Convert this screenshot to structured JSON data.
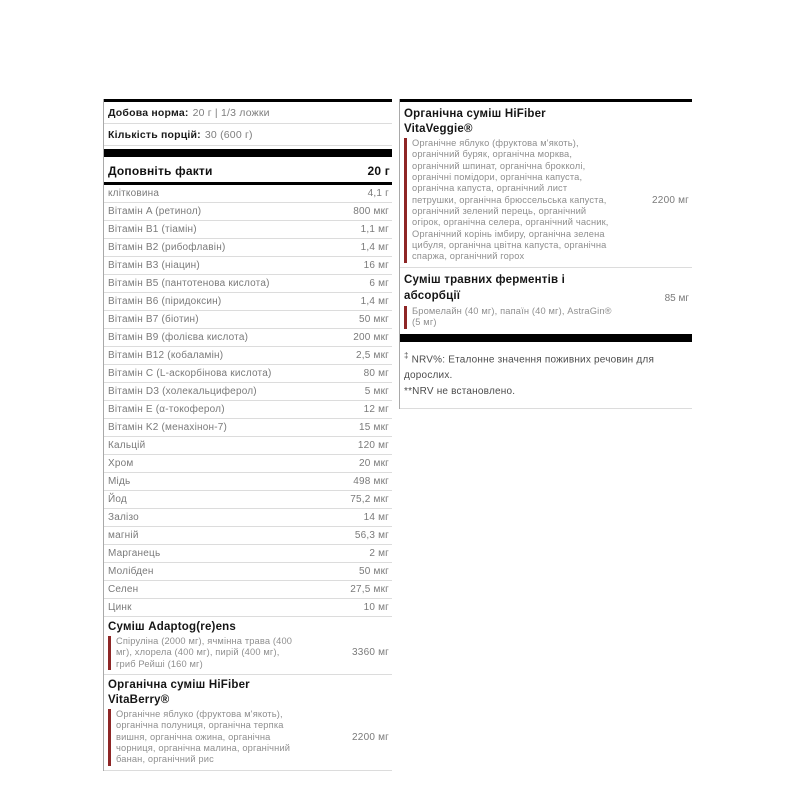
{
  "colors": {
    "accent_red": "#8e2626",
    "bar_black": "#000000"
  },
  "left_panel": {
    "daily_dose_label": "Добова норма:",
    "daily_dose_value": "20 г | 1/3 ложки",
    "servings_label": "Кількість порцій:",
    "servings_value": "30 (600 г)",
    "facts_header": "Доповніть факти",
    "facts_header_amount": "20 г",
    "rows": [
      {
        "label": "клітковина",
        "value": "4,1 г"
      },
      {
        "label": "Вітамін A (ретинол)",
        "value": "800 мкг"
      },
      {
        "label": "Вітамін B1 (тіамін)",
        "value": "1,1 мг"
      },
      {
        "label": "Вітамін B2 (рибофлавін)",
        "value": "1,4 мг"
      },
      {
        "label": "Вітамін B3 (ніацин)",
        "value": "16 мг"
      },
      {
        "label": "Вітамін B5 (пантотенова кислота)",
        "value": "6 мг"
      },
      {
        "label": "Вітамін B6 (піридоксин)",
        "value": "1,4 мг"
      },
      {
        "label": "Вітамін B7 (біотин)",
        "value": "50 мкг"
      },
      {
        "label": "Вітамін B9 (фолієва кислота)",
        "value": "200 мкг"
      },
      {
        "label": "Вітамін B12 (кобаламін)",
        "value": "2,5 мкг"
      },
      {
        "label": "Вітамін C (L-аскорбінова кислота)",
        "value": "80 мг"
      },
      {
        "label": "Вітамін D3 (холекальциферол)",
        "value": "5 мкг"
      },
      {
        "label": "Вітамін E (α-токоферол)",
        "value": "12 мг"
      },
      {
        "label": "Вітамін K2 (менахінон-7)",
        "value": "15 мкг"
      },
      {
        "label": "Кальцій",
        "value": "120 мг"
      },
      {
        "label": "Хром",
        "value": "20 мкг"
      },
      {
        "label": "Мідь",
        "value": "498 мкг"
      },
      {
        "label": "Йод",
        "value": "75,2 мкг"
      },
      {
        "label": "Залізо",
        "value": "14 мг"
      },
      {
        "label": "магній",
        "value": "56,3 мг"
      },
      {
        "label": "Марганець",
        "value": "2 мг"
      },
      {
        "label": "Молібден",
        "value": "50 мкг"
      },
      {
        "label": "Селен",
        "value": "27,5 мкг"
      },
      {
        "label": "Цинк",
        "value": "10 мг"
      }
    ],
    "adaptogens_title": "Суміш Adaptog(re)ens",
    "adaptogens_ingredients": "Спіруліна (2000 мг), ячмінна трава (400 мг), хлорела (400 мг), пирій (400 мг), гриб Рейші (160 мг)",
    "adaptogens_value": "3360 мг",
    "hifiber_title": "Органічна суміш HiFiber",
    "vitaberry_title": "VitaBerry®",
    "vitaberry_ingredients": "Органічне яблуко (фруктова м'якоть), органічна полуниця, органічна терпка вишня, органічна ожина, органічна чорниця, органічна малина, органічний банан, органічний рис",
    "vitaberry_value": "2200 мг"
  },
  "right_panel": {
    "hifiber_title": "Органічна суміш HiFiber",
    "vitaveggie_title": "VitaVeggie®",
    "vitaveggie_ingredients": "Органічне яблуко (фруктова м'якоть), органічний буряк, органічна морква, органічний шпинат, органічна брокколі, органічні помідори, органічна капуста, органічна капуста, органічний лист петрушки, органічна брюссельська капуста, органічний зелений перець, органічний огірок, органічна селера, органічний часник, Органічний корінь імбиру, органічна зелена цибуля, органічна цвітна капуста, органічна спаржа, органічний горох",
    "vitaveggie_value": "2200 мг",
    "enzymes_title": "Суміш травних ферментів і абсорбції",
    "enzymes_ingredients": "Бромелайн (40 мг), папаїн (40 мг), AstraGin® (5 мг)",
    "enzymes_value": "85 мг",
    "footnote_marker": "‡",
    "footnote1": "NRV%: Еталонне значення поживних речовин для дорослих.",
    "footnote2": "**NRV не встановлено."
  }
}
